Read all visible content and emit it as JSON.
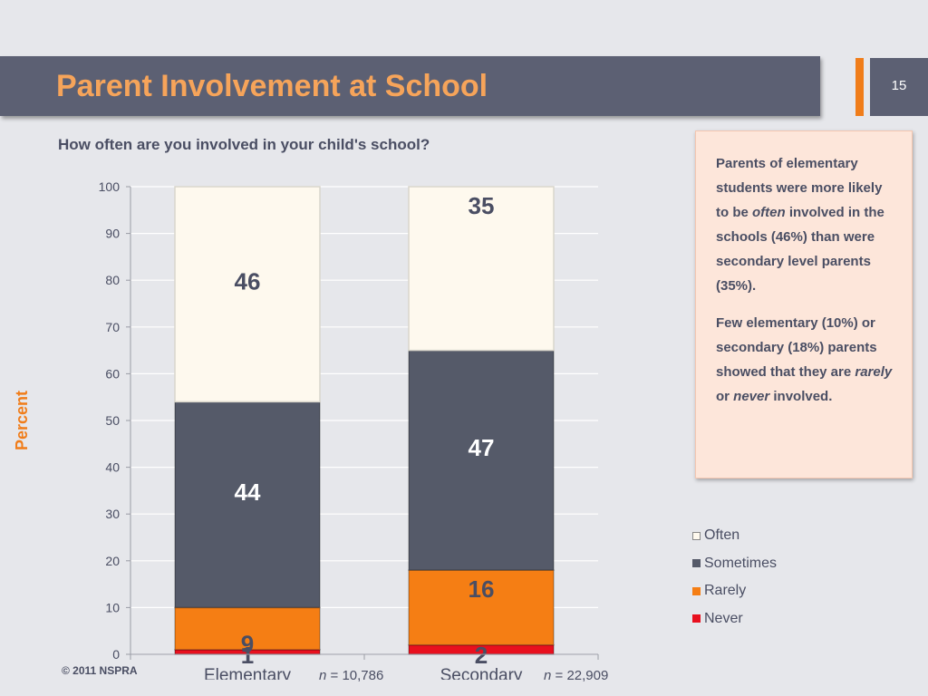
{
  "header": {
    "title": "Parent Involvement at School",
    "page_number": "15",
    "title_color": "#f6a45a",
    "accent_color": "#f07d1a"
  },
  "subtitle": "How often are you involved in your child's school?",
  "y_axis_label": "Percent",
  "chart_data": {
    "type": "bar",
    "stacked": true,
    "categories": [
      "Elementary",
      "Secondary"
    ],
    "series": [
      {
        "name": "Never",
        "values": [
          1,
          2
        ],
        "color": "#e8101e"
      },
      {
        "name": "Rarely",
        "values": [
          9,
          16
        ],
        "color": "#f57e14"
      },
      {
        "name": "Sometimes",
        "values": [
          44,
          47
        ],
        "color": "#555a69"
      },
      {
        "name": "Often",
        "values": [
          46,
          35
        ],
        "color": "#fef9ee"
      }
    ],
    "ylabel": "Percent",
    "ylim": [
      0,
      100
    ],
    "yticks": [
      0,
      10,
      20,
      30,
      40,
      50,
      60,
      70,
      80,
      90,
      100
    ],
    "grid": true,
    "legend_position": "right"
  },
  "legend": {
    "items": [
      {
        "label": "Often",
        "color": "#fef9ee"
      },
      {
        "label": "Sometimes",
        "color": "#555a69"
      },
      {
        "label": "Rarely",
        "color": "#f57e14"
      },
      {
        "label": "Never",
        "color": "#e8101e"
      }
    ]
  },
  "sample_sizes": [
    {
      "prefix": "n",
      "text": " = 10,786"
    },
    {
      "prefix": "n",
      "text": " = 22,909"
    }
  ],
  "callout": {
    "p1_a": "Parents of elementary students were more likely to be ",
    "p1_em": "often",
    "p1_b": " involved in the schools (46%) than were secondary level parents (35%).",
    "p2_a": "Few elementary (10%) or secondary (18%) parents showed that they are ",
    "p2_em1": "rarely",
    "p2_mid": " or ",
    "p2_em2": "never",
    "p2_b": " involved."
  },
  "footer": "© 2011 NSPRA"
}
